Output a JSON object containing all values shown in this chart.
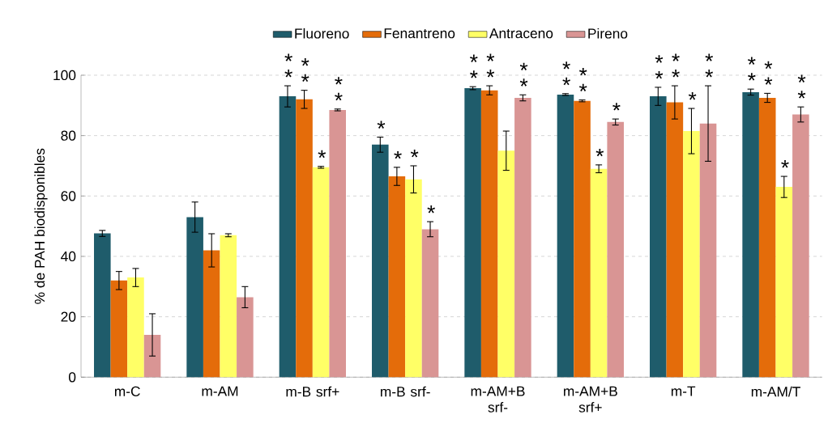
{
  "chart_data": {
    "type": "bar",
    "ylabel": "% de PAH biodisponibles",
    "categories": [
      "m-C",
      "m-AM",
      "m-B srf+",
      "m-B srf-",
      "m-AM+B srf-",
      "m-AM+B srf+",
      "m-T",
      "m-AM/T"
    ],
    "series": [
      {
        "name": "Fluoreno",
        "color": "#1f5c6b",
        "values": [
          47.6,
          53,
          93,
          77,
          95.7,
          93.6,
          93,
          94.4
        ],
        "errors": [
          1,
          5,
          3.5,
          2.5,
          0.5,
          0.3,
          3,
          1
        ],
        "value_labels": [
          null,
          null,
          "* *",
          "*",
          "* *",
          "* *",
          "* *",
          "* *"
        ]
      },
      {
        "name": "Fenantreno",
        "color": "#e46c0a",
        "values": [
          32,
          42,
          92,
          66.5,
          95,
          91.5,
          91,
          92.5
        ],
        "errors": [
          3,
          5.5,
          3,
          3,
          1.5,
          0.3,
          5.5,
          1.5
        ],
        "value_labels": [
          null,
          null,
          "* *",
          "*",
          "* *",
          "* *",
          "* *",
          "* *"
        ]
      },
      {
        "name": "Antraceno",
        "color": "#ffff66",
        "values": [
          33,
          47,
          69.5,
          65.5,
          75,
          69,
          81.5,
          63
        ],
        "errors": [
          3,
          0.5,
          0.3,
          4.5,
          6.5,
          1.3,
          7.5,
          3.5
        ],
        "value_labels": [
          null,
          null,
          "*",
          "*",
          null,
          "*",
          "*",
          "*"
        ]
      },
      {
        "name": "Pireno",
        "color": "#d99594",
        "values": [
          14,
          26.5,
          88.5,
          49,
          92.5,
          84.5,
          84,
          87
        ],
        "errors": [
          7,
          3.5,
          0.3,
          2.5,
          1,
          1,
          12.5,
          2.5
        ],
        "value_labels": [
          null,
          null,
          "* *",
          "*",
          "* *",
          "*",
          "* *",
          "* *"
        ]
      }
    ],
    "ylim": [
      0,
      100
    ],
    "yticks": [
      0,
      20,
      40,
      60,
      80,
      100
    ],
    "grid": "y",
    "legend": "top"
  }
}
